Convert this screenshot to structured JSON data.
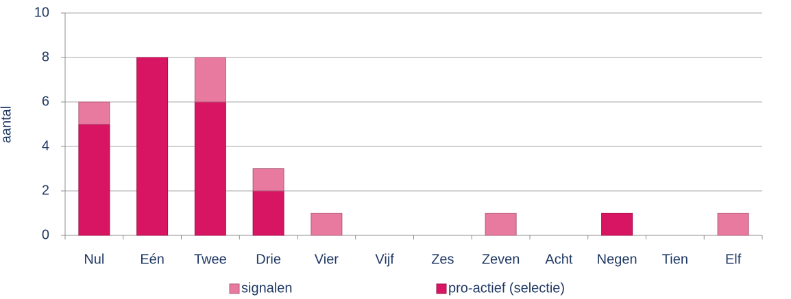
{
  "chart_data": {
    "type": "stacked_bar",
    "y_label": "aantal",
    "categories": [
      "Nul",
      "Eén",
      "Twee",
      "Drie",
      "Vier",
      "Vijf",
      "Zes",
      "Zeven",
      "Acht",
      "Negen",
      "Tien",
      "Elf"
    ],
    "series": [
      {
        "name": "pro-actief (selectie)",
        "color": "#d81563",
        "values": [
          5,
          8,
          6,
          2,
          0,
          0,
          0,
          0,
          0,
          1,
          0,
          0
        ]
      },
      {
        "name": "signalen",
        "color": "#e8799f",
        "values": [
          1,
          0,
          2,
          1,
          1,
          0,
          0,
          1,
          0,
          0,
          0,
          1
        ]
      }
    ],
    "ylim": [
      0,
      10
    ],
    "yticks": [
      0,
      2,
      4,
      6,
      8,
      10
    ],
    "grid": true,
    "legend": "bottom"
  }
}
